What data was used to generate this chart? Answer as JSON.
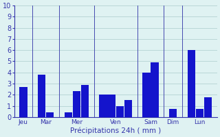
{
  "days": [
    "Jeu",
    "Mar",
    "Mer",
    "Ven",
    "Sam",
    "Dim",
    "Lun"
  ],
  "bars": [
    [
      2.7
    ],
    [
      3.8,
      0.4
    ],
    [
      0.4,
      2.3,
      2.9
    ],
    [
      2.0,
      2.0,
      1.0,
      1.5
    ],
    [
      4.0,
      4.9
    ],
    [
      0.7
    ],
    [
      6.0,
      0.7,
      1.8
    ]
  ],
  "bar_color": "#1414cc",
  "background_color": "#dff2f2",
  "grid_color": "#aacccc",
  "axis_color": "#3333aa",
  "text_color": "#3333aa",
  "xlabel": "Précipitations 24h ( mm )",
  "ylim": [
    0,
    10
  ],
  "yticks": [
    0,
    1,
    2,
    3,
    4,
    5,
    6,
    7,
    8,
    9,
    10
  ]
}
